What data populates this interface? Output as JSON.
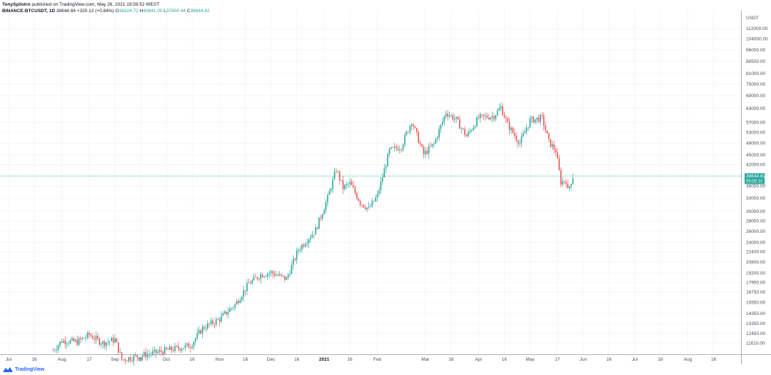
{
  "header": {
    "publisher": "TonySpilotro",
    "published_text": "published on TradingView.com, May 26, 2021 19:59:52 WEST",
    "symbol": "BINANCE:BTCUSDT, 1D",
    "last": "38644.84",
    "change": "+320.12 (+0.84%)",
    "o_label": "O",
    "o": "38324.72",
    "h_label": "H",
    "h": "40841.00",
    "l_label": "L",
    "l": "37800.44",
    "c_label": "C",
    "c": "38644.82"
  },
  "price_axis": {
    "unit": "USDT",
    "current_price": "38644.82",
    "countdown": "05:00:10"
  },
  "footer": {
    "brand": "TradingView"
  },
  "colors": {
    "up": "#26a69a",
    "down": "#ef5350",
    "grid": "#f0f3fa",
    "axis_text": "#4a4e5a",
    "price_line": "#26a69a"
  },
  "chart_data": {
    "type": "candlestick",
    "title": "",
    "xlabel": "",
    "ylabel": "",
    "y_scale": "log",
    "ylim": [
      10700,
      128000
    ],
    "x_range": [
      "2020-06-26",
      "2021-09-01"
    ],
    "grid": true,
    "y_ticks": [
      112000,
      104000,
      96000,
      88500,
      81000,
      75000,
      69000,
      63000,
      57000,
      53000,
      49000,
      45000,
      42000,
      39000,
      36000,
      33000,
      30000,
      28000,
      26000,
      24000,
      22400,
      20800,
      19200,
      17950,
      16750,
      15550,
      14350,
      13350,
      12450,
      11610
    ],
    "y_tick_labels": [
      "112000.00",
      "104000.00",
      "96000.00",
      "88500.00",
      "81000.00",
      "75000.00",
      "69000.00",
      "63000.00",
      "57000.00",
      "53000.00",
      "49000.00",
      "45000.00",
      "42000.00",
      "39000.00",
      "36000.00",
      "33000.00",
      "30000.00",
      "28000.00",
      "26000.00",
      "24000.00",
      "22400.00",
      "20800.00",
      "19200.00",
      "17950.00",
      "16750.00",
      "15550.00",
      "14350.00",
      "13350.00",
      "12450.00",
      "11610.00"
    ],
    "x_ticks": [
      {
        "date": "2020-07-01",
        "label": "Jul"
      },
      {
        "date": "2020-07-16",
        "label": "16"
      },
      {
        "date": "2020-08-01",
        "label": "Aug"
      },
      {
        "date": "2020-08-17",
        "label": "17"
      },
      {
        "date": "2020-09-01",
        "label": "Sep"
      },
      {
        "date": "2020-09-16",
        "label": "16"
      },
      {
        "date": "2020-10-01",
        "label": "Oct"
      },
      {
        "date": "2020-10-16",
        "label": "16"
      },
      {
        "date": "2020-11-01",
        "label": "Nov"
      },
      {
        "date": "2020-11-16",
        "label": "16"
      },
      {
        "date": "2020-12-01",
        "label": "Dec"
      },
      {
        "date": "2020-12-16",
        "label": "16"
      },
      {
        "date": "2021-01-01",
        "label": "2021",
        "bold": true
      },
      {
        "date": "2021-01-16",
        "label": "16"
      },
      {
        "date": "2021-02-01",
        "label": "Feb"
      },
      {
        "date": "2021-03-01",
        "label": "Mar"
      },
      {
        "date": "2021-03-16",
        "label": "16"
      },
      {
        "date": "2021-04-01",
        "label": "Apr"
      },
      {
        "date": "2021-04-16",
        "label": "16"
      },
      {
        "date": "2021-05-01",
        "label": "May"
      },
      {
        "date": "2021-05-17",
        "label": "17"
      },
      {
        "date": "2021-06-01",
        "label": "Jun"
      },
      {
        "date": "2021-06-16",
        "label": "16"
      },
      {
        "date": "2021-07-01",
        "label": "Jul"
      },
      {
        "date": "2021-07-16",
        "label": "16"
      },
      {
        "date": "2021-08-01",
        "label": "Aug"
      },
      {
        "date": "2021-08-16",
        "label": "16"
      }
    ],
    "close_path": [
      [
        "2020-07-27",
        11000
      ],
      [
        "2020-08-01",
        11800
      ],
      [
        "2020-08-10",
        11700
      ],
      [
        "2020-08-17",
        12300
      ],
      [
        "2020-08-25",
        11600
      ],
      [
        "2020-09-01",
        11900
      ],
      [
        "2020-09-05",
        10300
      ],
      [
        "2020-10-15",
        11400
      ],
      [
        "2020-10-22",
        12900
      ],
      [
        "2020-11-01",
        13800
      ],
      [
        "2020-11-10",
        15300
      ],
      [
        "2020-11-18",
        17800
      ],
      [
        "2020-11-25",
        19000
      ],
      [
        "2020-12-01",
        19300
      ],
      [
        "2020-12-10",
        18400
      ],
      [
        "2020-12-17",
        22800
      ],
      [
        "2020-12-27",
        26200
      ],
      [
        "2021-01-03",
        33000
      ],
      [
        "2021-01-08",
        40600
      ],
      [
        "2021-01-12",
        35500
      ],
      [
        "2021-01-16",
        36700
      ],
      [
        "2021-01-22",
        32000
      ],
      [
        "2021-01-27",
        30500
      ],
      [
        "2021-02-01",
        33500
      ],
      [
        "2021-02-08",
        46400
      ],
      [
        "2021-02-15",
        48000
      ],
      [
        "2021-02-21",
        57500
      ],
      [
        "2021-02-28",
        45200
      ],
      [
        "2021-03-06",
        48700
      ],
      [
        "2021-03-13",
        61200
      ],
      [
        "2021-03-19",
        58000
      ],
      [
        "2021-03-25",
        51500
      ],
      [
        "2021-04-01",
        58800
      ],
      [
        "2021-04-10",
        59700
      ],
      [
        "2021-04-14",
        63500
      ],
      [
        "2021-04-18",
        56000
      ],
      [
        "2021-04-25",
        49000
      ],
      [
        "2021-05-01",
        57800
      ],
      [
        "2021-05-08",
        58800
      ],
      [
        "2021-05-12",
        49500
      ],
      [
        "2021-05-16",
        46400
      ],
      [
        "2021-05-19",
        37000
      ],
      [
        "2021-05-22",
        37500
      ],
      [
        "2021-05-23",
        34700
      ],
      [
        "2021-05-26",
        38644
      ]
    ],
    "last_price": 38644.82
  }
}
